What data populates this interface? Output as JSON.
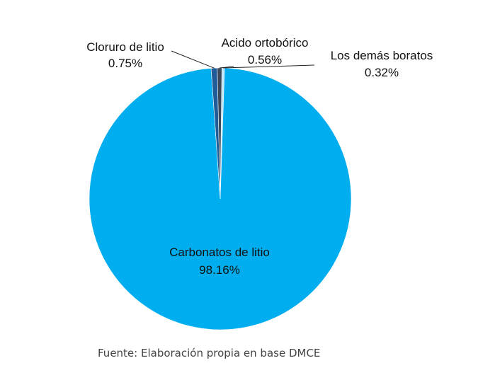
{
  "chart_data": {
    "type": "pie",
    "categories": [
      "Carbonatos de litio",
      "Cloruro de litio",
      "Acido ortobórico",
      "Los demás boratos"
    ],
    "values": [
      98.16,
      0.75,
      0.56,
      0.32
    ],
    "value_labels": [
      "98.16%",
      "0.75%",
      "0.56%",
      "0.32%"
    ],
    "colors": [
      "#00adef",
      "#1f5c99",
      "#3a4a5c",
      "#bfe6f7"
    ],
    "legend": "none",
    "start": "top, clockwise",
    "source": "Fuente: Elaboración propia en base DMCE"
  }
}
